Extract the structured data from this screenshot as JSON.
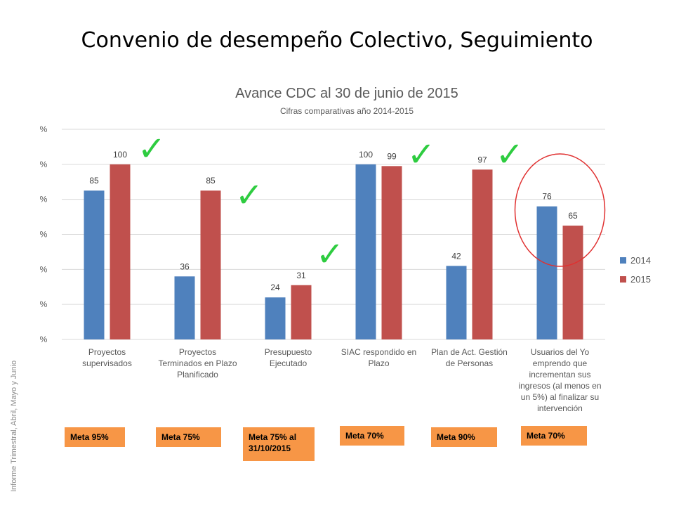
{
  "slide_title": "Convenio de desempeño Colectivo, Seguimiento",
  "side_note": "Informe Trimestral, Abril, Mayo y Junio",
  "colors": {
    "series_2014": "#4f81bd",
    "series_2015": "#c0504d",
    "meta_box": "#f79646",
    "checkmark": "#2ecc40",
    "circle": "#e03030",
    "grid": "#d9d9d9"
  },
  "chart_data": {
    "type": "bar",
    "title": "Avance CDC al 30 de junio de 2015",
    "subtitle": "Cifras comparativas año 2014-2015",
    "ylim": [
      0,
      120
    ],
    "y_tick_labels": [
      "%",
      "%",
      "%",
      "%",
      "%",
      "%",
      "%"
    ],
    "grid": true,
    "legend_position": "right",
    "categories": [
      [
        "Proyectos",
        "supervisados"
      ],
      [
        "Proyectos",
        "Terminados en Plazo",
        "Planificado"
      ],
      [
        "Presupuesto",
        "Ejecutado"
      ],
      [
        "SIAC respondido en",
        "Plazo"
      ],
      [
        "Plan de Act. Gestión",
        "de Personas"
      ],
      [
        "Usuarios del Yo",
        "emprendo que",
        "incrementan sus",
        "ingresos (al menos en",
        "un 5%) al finalizar su",
        "intervención"
      ]
    ],
    "series": [
      {
        "name": "2014",
        "values": [
          85,
          36,
          24,
          100,
          42,
          76
        ]
      },
      {
        "name": "2015",
        "values": [
          100,
          85,
          31,
          99,
          97,
          65
        ]
      }
    ]
  },
  "metas": [
    "Meta 95%",
    "Meta 75%",
    "Meta 75% al 31/10/2015",
    "Meta 70%",
    "Meta 90%",
    "Meta 70%"
  ],
  "checkmark_glyph": "✓",
  "checked_categories": [
    0,
    1,
    2,
    3,
    4
  ],
  "circled_category": 5
}
